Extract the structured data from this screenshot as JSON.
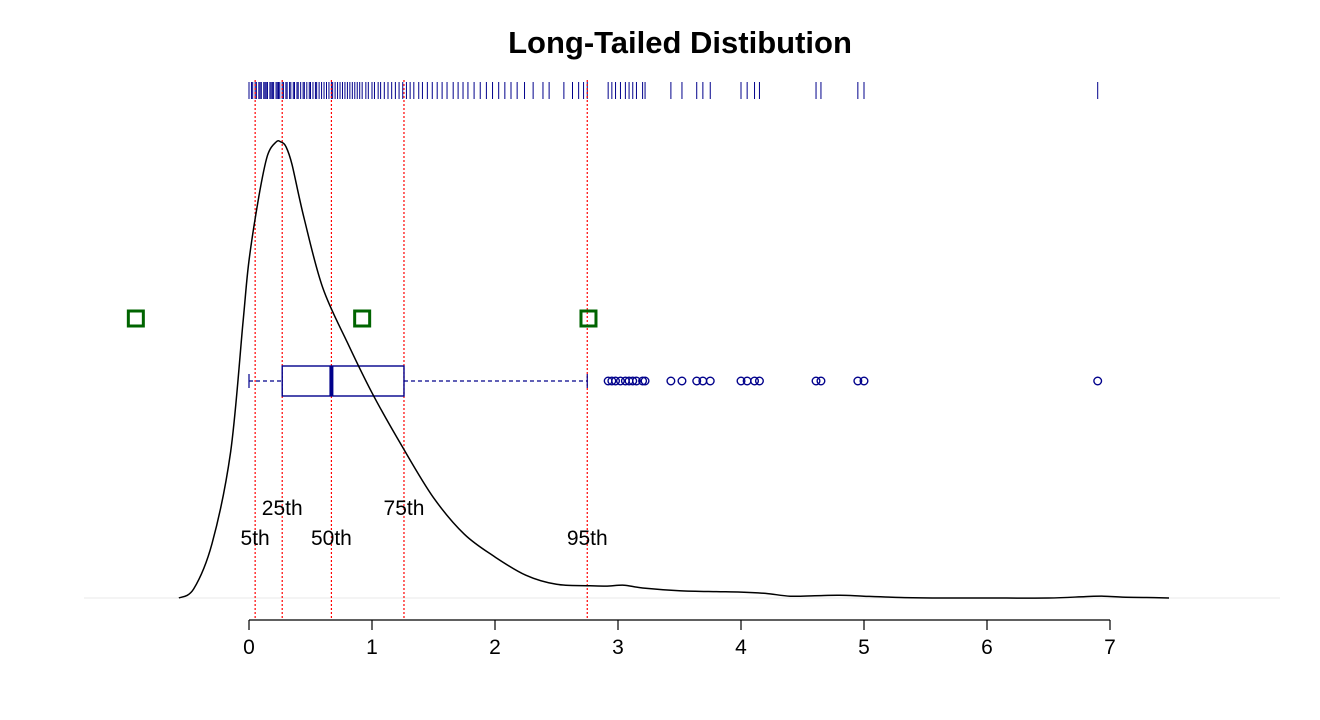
{
  "chart_data": {
    "type": "density",
    "title": "Long-Tailed Distibution",
    "xlim": [
      0,
      7
    ],
    "x_ticks": [
      "0",
      "1",
      "2",
      "3",
      "4",
      "5",
      "6",
      "7"
    ],
    "x_tick_values": [
      0,
      1,
      2,
      3,
      4,
      5,
      6,
      7
    ],
    "density_curve": {
      "x": [
        -0.57,
        -0.45,
        -0.3,
        -0.15,
        -0.05,
        0.0,
        0.08,
        0.15,
        0.22,
        0.26,
        0.3,
        0.35,
        0.45,
        0.6,
        0.8,
        1.0,
        1.25,
        1.5,
        1.75,
        2.0,
        2.25,
        2.5,
        2.75,
        2.9,
        3.05,
        3.2,
        3.5,
        3.8,
        4.0,
        4.2,
        4.4,
        4.6,
        4.8,
        5.0,
        5.3,
        5.6,
        6.0,
        6.5,
        6.8,
        6.95,
        7.1,
        7.3,
        7.48
      ],
      "y": [
        0.0,
        0.02,
        0.12,
        0.32,
        0.6,
        0.74,
        0.88,
        0.97,
        1.0,
        1.0,
        0.99,
        0.95,
        0.83,
        0.68,
        0.56,
        0.45,
        0.33,
        0.22,
        0.14,
        0.09,
        0.05,
        0.03,
        0.027,
        0.026,
        0.028,
        0.022,
        0.016,
        0.014,
        0.013,
        0.01,
        0.004,
        0.005,
        0.006,
        0.004,
        0.001,
        0.0,
        0.0,
        0.0,
        0.003,
        0.004,
        0.002,
        0.001,
        0.0
      ],
      "color": "#000000"
    },
    "percentiles": [
      {
        "label": "5th",
        "value": 0.05
      },
      {
        "label": "25th",
        "value": 0.27
      },
      {
        "label": "50th",
        "value": 0.67
      },
      {
        "label": "75th",
        "value": 1.26
      },
      {
        "label": "95th",
        "value": 2.75
      }
    ],
    "percentile_line_color": "#ff0000",
    "boxplot": {
      "whisker_low": 0.0,
      "q1": 0.27,
      "median": 0.67,
      "q3": 1.26,
      "whisker_high": 2.75,
      "outliers": [
        2.92,
        2.95,
        2.98,
        3.02,
        3.06,
        3.09,
        3.12,
        3.15,
        3.2,
        3.22,
        3.43,
        3.52,
        3.64,
        3.69,
        3.75,
        4.0,
        4.05,
        4.11,
        4.15,
        4.61,
        4.65,
        4.95,
        5.0,
        6.9
      ],
      "color": "#00008b"
    },
    "rug": {
      "values": [
        0.0,
        0.02,
        0.03,
        0.05,
        0.06,
        0.08,
        0.09,
        0.1,
        0.12,
        0.13,
        0.14,
        0.15,
        0.17,
        0.18,
        0.19,
        0.2,
        0.22,
        0.23,
        0.24,
        0.25,
        0.27,
        0.28,
        0.3,
        0.31,
        0.33,
        0.34,
        0.36,
        0.37,
        0.39,
        0.4,
        0.42,
        0.44,
        0.45,
        0.47,
        0.49,
        0.5,
        0.52,
        0.54,
        0.55,
        0.57,
        0.59,
        0.61,
        0.63,
        0.65,
        0.67,
        0.68,
        0.7,
        0.72,
        0.74,
        0.76,
        0.78,
        0.8,
        0.82,
        0.84,
        0.86,
        0.88,
        0.9,
        0.92,
        0.95,
        0.97,
        1.0,
        1.02,
        1.05,
        1.07,
        1.1,
        1.13,
        1.16,
        1.19,
        1.22,
        1.25,
        1.28,
        1.31,
        1.34,
        1.38,
        1.41,
        1.45,
        1.49,
        1.53,
        1.57,
        1.61,
        1.66,
        1.7,
        1.74,
        1.78,
        1.83,
        1.88,
        1.93,
        1.98,
        2.03,
        2.08,
        2.13,
        2.18,
        2.24,
        2.31,
        2.39,
        2.44,
        2.56,
        2.63,
        2.68,
        2.72,
        2.75,
        2.92,
        2.95,
        2.98,
        3.02,
        3.06,
        3.09,
        3.12,
        3.15,
        3.2,
        3.22,
        3.43,
        3.52,
        3.64,
        3.69,
        3.75,
        4.0,
        4.05,
        4.11,
        4.15,
        4.61,
        4.65,
        4.95,
        5.0,
        6.9
      ],
      "color": "#00008b"
    },
    "markers": {
      "shape": "open-square",
      "color": "#006400",
      "x": [
        -0.92,
        0.92,
        2.76
      ]
    },
    "grid": false,
    "legend": "none"
  }
}
